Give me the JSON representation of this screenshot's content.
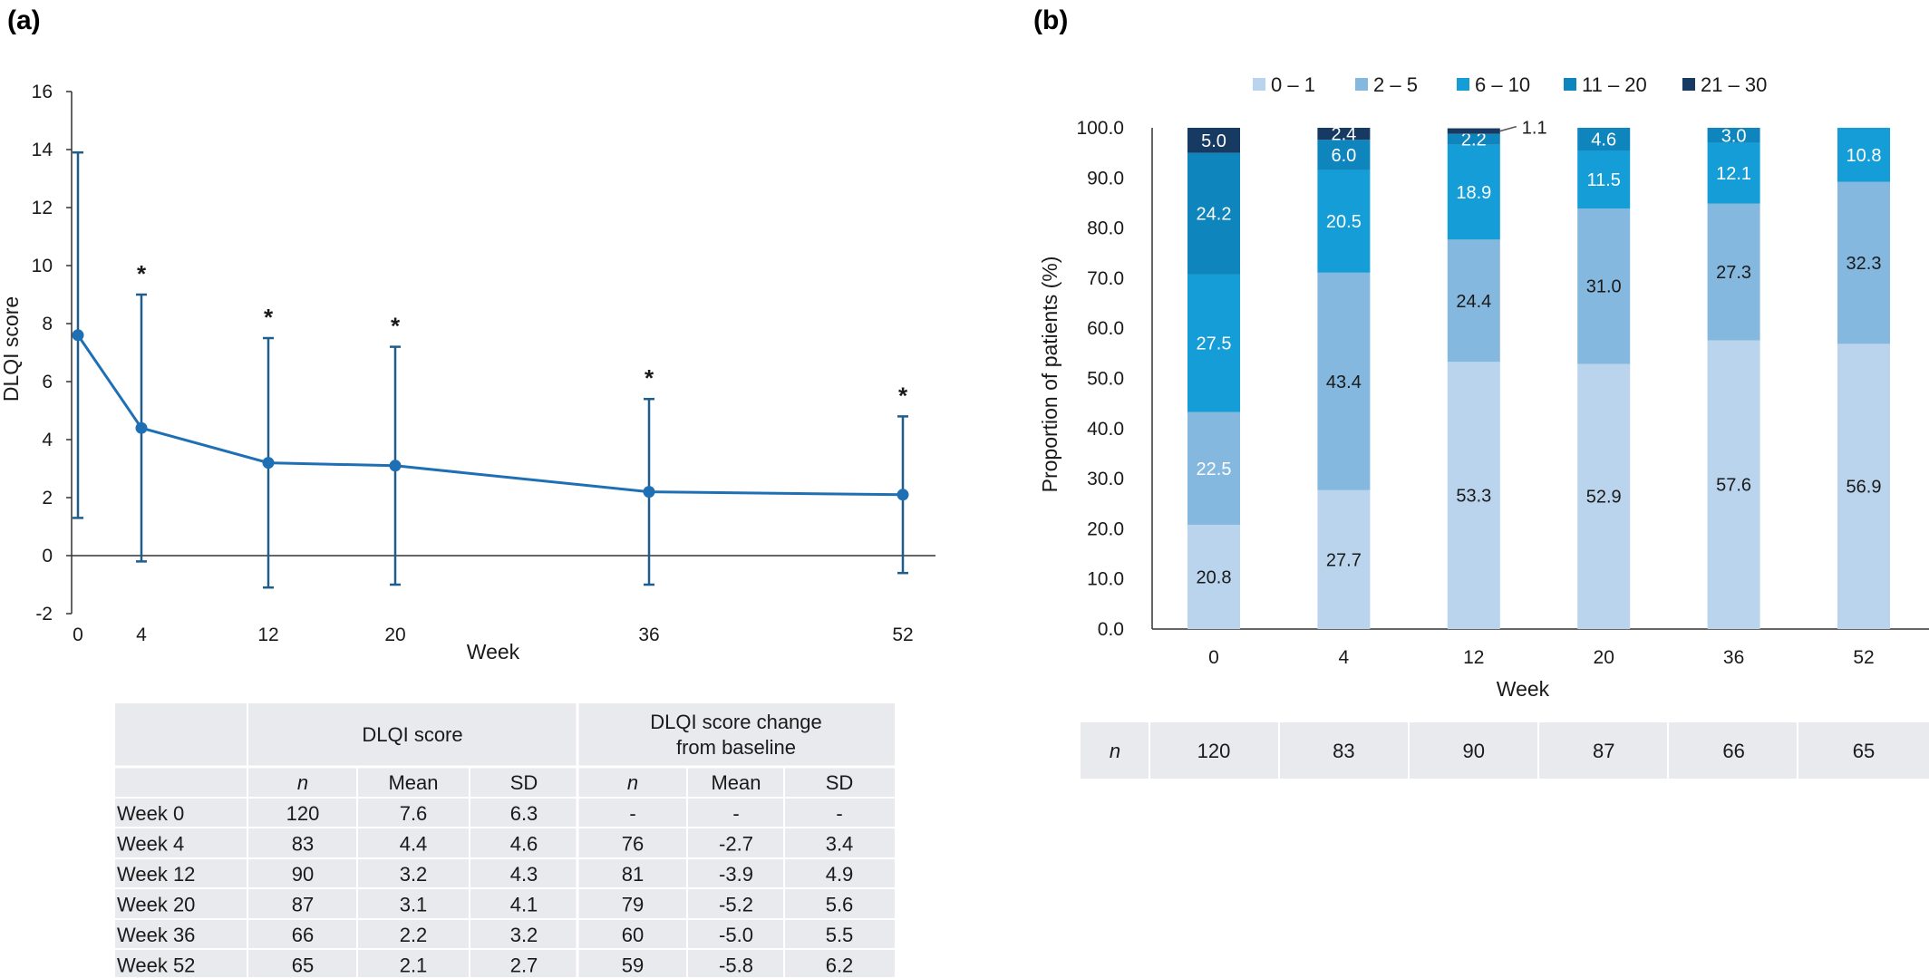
{
  "panel_a_label": "(a)",
  "panel_b_label": "(b)",
  "chart_data": [
    {
      "type": "line",
      "xlabel": "Week",
      "ylabel": "DLQI score",
      "x": [
        0,
        4,
        12,
        20,
        36,
        52
      ],
      "x_ticks": [
        "0",
        "4",
        "12",
        "20",
        "36",
        "52"
      ],
      "y_ticks": [
        "-2",
        "0",
        "2",
        "4",
        "6",
        "8",
        "10",
        "12",
        "14",
        "16"
      ],
      "ylim": [
        -2,
        16
      ],
      "series": [
        {
          "mean": [
            7.6,
            4.4,
            3.2,
            3.1,
            2.2,
            2.1
          ],
          "sd": [
            6.3,
            4.6,
            4.3,
            4.1,
            3.2,
            2.7
          ]
        }
      ],
      "significance_marker": "*",
      "significant": [
        false,
        true,
        true,
        true,
        true,
        true
      ],
      "color": "#1f6fb5",
      "errorbar_color": "#1f5e8c"
    },
    {
      "type": "bar",
      "stacked": true,
      "xlabel": "Week",
      "ylabel": "Proportion of patients (%)",
      "categories": [
        "0",
        "4",
        "12",
        "20",
        "36",
        "52"
      ],
      "y_ticks": [
        "0.0",
        "10.0",
        "20.0",
        "30.0",
        "40.0",
        "50.0",
        "60.0",
        "70.0",
        "80.0",
        "90.0",
        "100.0"
      ],
      "ylim": [
        0,
        100
      ],
      "legend_position": "top",
      "series": [
        {
          "name": "0 – 1",
          "color": "#b9d4ec",
          "values": [
            20.8,
            27.7,
            53.3,
            52.9,
            57.6,
            56.9
          ],
          "labels": [
            "20.8",
            "27.7",
            "53.3",
            "52.9",
            "57.6",
            "56.9"
          ]
        },
        {
          "name": "2 – 5",
          "color": "#85b8df",
          "values": [
            22.5,
            43.4,
            24.4,
            31.0,
            27.3,
            32.3
          ],
          "labels": [
            "22.5",
            "43.4",
            "24.4",
            "31.0",
            "27.3",
            "32.3"
          ]
        },
        {
          "name": "6 – 10",
          "color": "#149dd7",
          "values": [
            27.5,
            20.5,
            18.9,
            11.5,
            12.1,
            10.8
          ],
          "labels": [
            "27.5",
            "20.5",
            "18.9",
            "11.5",
            "12.1",
            "10.8"
          ]
        },
        {
          "name": "11 – 20",
          "color": "#0e85bc",
          "values": [
            24.2,
            6.0,
            2.2,
            4.6,
            3.0,
            0
          ],
          "labels": [
            "24.2",
            "6.0",
            "2.2",
            "4.6",
            "3.0",
            ""
          ]
        },
        {
          "name": "21 – 30",
          "color": "#163a62",
          "values": [
            5.0,
            2.4,
            1.1,
            0,
            0,
            0
          ],
          "labels": [
            "5.0",
            "2.4",
            "1.1",
            "",
            "",
            ""
          ]
        }
      ]
    }
  ],
  "table_a": {
    "group_headers": [
      "DLQI score",
      "DLQI score change\nfrom baseline"
    ],
    "sub_headers": [
      "n",
      "Mean",
      "SD",
      "n",
      "Mean",
      "SD"
    ],
    "rows": [
      {
        "label": "Week 0",
        "cells": [
          "120",
          "7.6",
          "6.3",
          "-",
          "-",
          "-"
        ]
      },
      {
        "label": "Week 4",
        "cells": [
          "83",
          "4.4",
          "4.6",
          "76",
          "-2.7",
          "3.4"
        ]
      },
      {
        "label": "Week 12",
        "cells": [
          "90",
          "3.2",
          "4.3",
          "81",
          "-3.9",
          "4.9"
        ]
      },
      {
        "label": "Week 20",
        "cells": [
          "87",
          "3.1",
          "4.1",
          "79",
          "-5.2",
          "5.6"
        ]
      },
      {
        "label": "Week 36",
        "cells": [
          "66",
          "2.2",
          "3.2",
          "60",
          "-5.0",
          "5.5"
        ]
      },
      {
        "label": "Week 52",
        "cells": [
          "65",
          "2.1",
          "2.7",
          "59",
          "-5.8",
          "6.2"
        ]
      }
    ]
  },
  "table_b": {
    "label": "n",
    "values": [
      "120",
      "83",
      "90",
      "87",
      "66",
      "65"
    ]
  }
}
